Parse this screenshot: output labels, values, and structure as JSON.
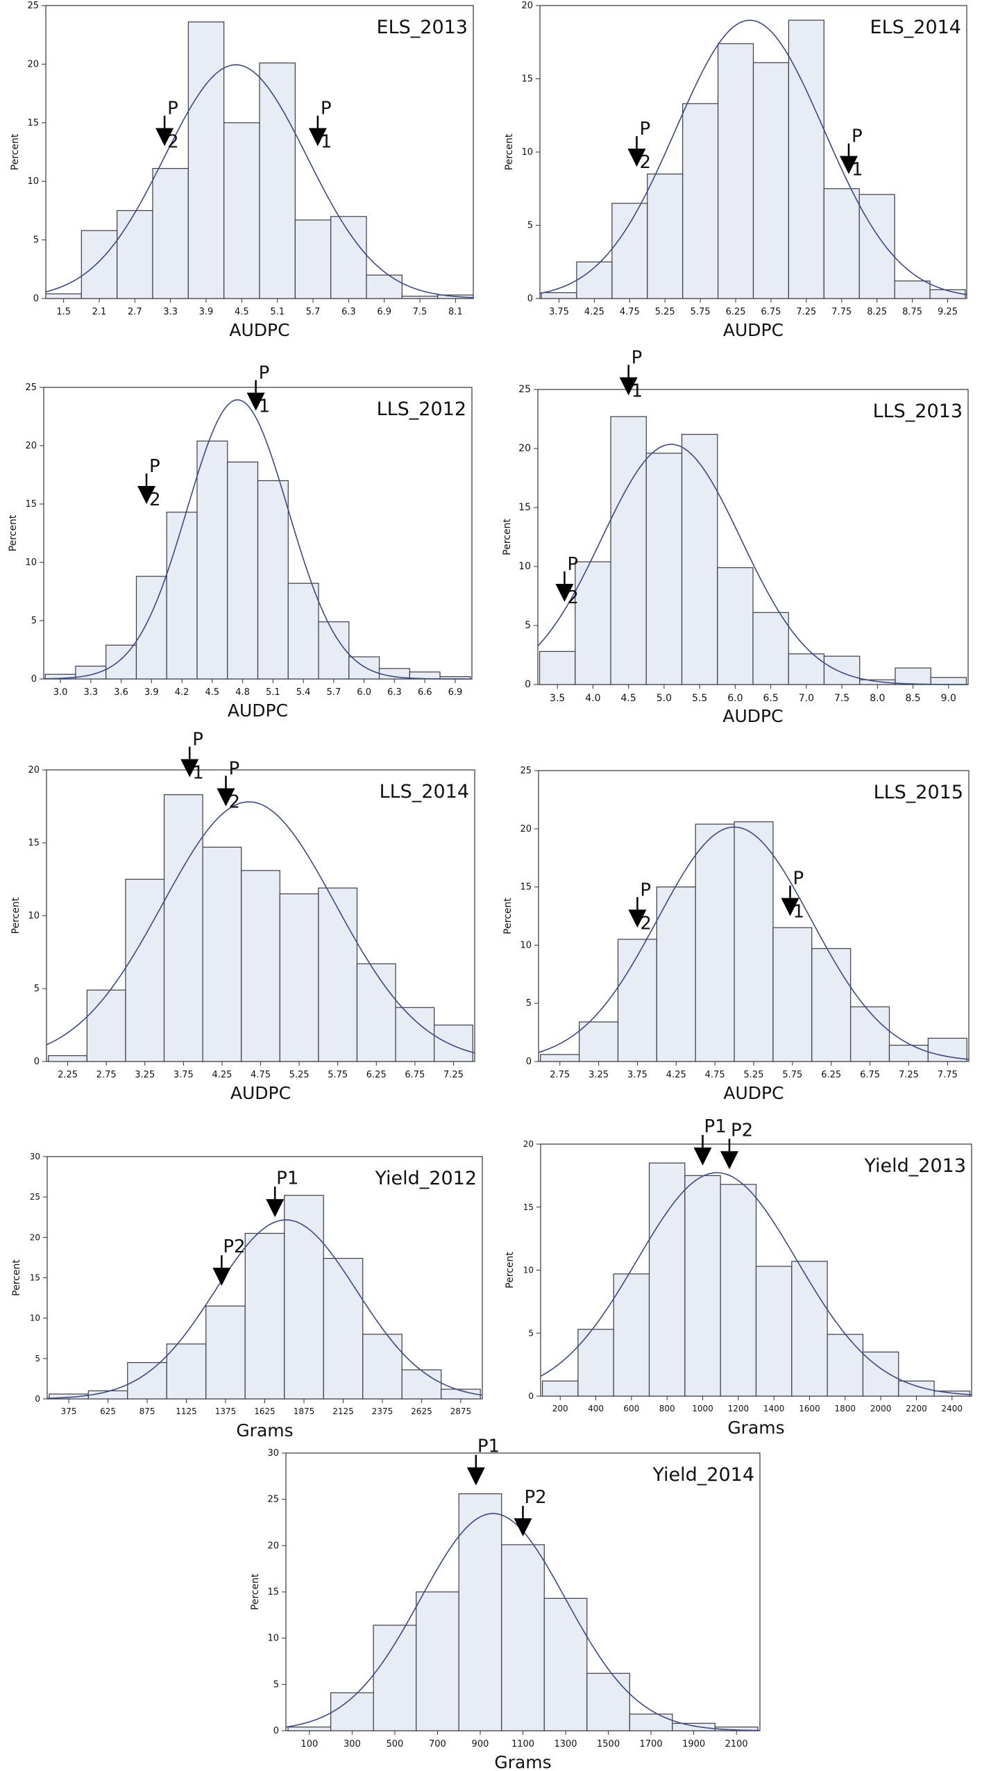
{
  "chart_data": [
    {
      "type": "bar",
      "title": "ELS_2013",
      "xlabel": "AUDPC",
      "ylabel": "Percent",
      "categories": [
        "1.5",
        "2.1",
        "2.7",
        "3.3",
        "3.9",
        "4.5",
        "5.1",
        "5.7",
        "6.3",
        "6.9",
        "7.5",
        "8.1"
      ],
      "values": [
        0.4,
        5.8,
        7.5,
        11.1,
        23.6,
        15.0,
        20.1,
        6.7,
        7.0,
        2.0,
        0.2,
        0.3
      ],
      "ylim": [
        0,
        25
      ],
      "yticks": [
        0,
        5,
        10,
        15,
        20,
        25
      ],
      "curve": {
        "mean": 4.4,
        "sd": 1.2
      },
      "markers": [
        {
          "top": "P",
          "bottom": "2",
          "x": 3.2,
          "y": 13
        },
        {
          "top": "P",
          "bottom": "1",
          "x": 5.78,
          "y": 13
        }
      ]
    },
    {
      "type": "bar",
      "title": "ELS_2014",
      "xlabel": "AUDPC",
      "ylabel": "Percent",
      "categories": [
        "3.75",
        "4.25",
        "4.75",
        "5.25",
        "5.75",
        "6.25",
        "6.75",
        "7.25",
        "7.75",
        "8.25",
        "8.75",
        "9.25"
      ],
      "values": [
        0.4,
        2.5,
        6.5,
        8.5,
        13.3,
        17.4,
        16.1,
        19.0,
        7.5,
        7.1,
        1.2,
        0.6
      ],
      "ylim": [
        0,
        20
      ],
      "yticks": [
        0,
        5,
        10,
        15,
        20
      ],
      "curve": {
        "mean": 6.45,
        "sd": 1.05
      },
      "markers": [
        {
          "top": "P",
          "bottom": "2",
          "x": 4.85,
          "y": 9
        },
        {
          "top": "P",
          "bottom": "1",
          "x": 7.85,
          "y": 8.5
        }
      ]
    },
    {
      "type": "bar",
      "title": "LLS_2012",
      "xlabel": "AUDPC",
      "ylabel": "Percent",
      "categories": [
        "3.0",
        "3.3",
        "3.6",
        "3.9",
        "4.2",
        "4.5",
        "4.8",
        "5.1",
        "5.4",
        "5.7",
        "6.0",
        "6.3",
        "6.6",
        "6.9"
      ],
      "values": [
        0.4,
        1.1,
        2.9,
        8.8,
        14.3,
        20.4,
        18.6,
        17.0,
        8.2,
        4.9,
        1.9,
        0.9,
        0.6,
        0.2
      ],
      "ylim": [
        0,
        25
      ],
      "yticks": [
        0,
        5,
        10,
        15,
        20,
        25
      ],
      "curve": {
        "mean": 4.75,
        "sd": 0.5
      },
      "markers": [
        {
          "top": "P",
          "bottom": "2",
          "x": 3.85,
          "y": 15
        },
        {
          "top": "P",
          "bottom": "1",
          "x": 4.93,
          "y": 23
        }
      ]
    },
    {
      "type": "bar",
      "title": "LLS_2013",
      "xlabel": "AUDPC",
      "ylabel": "Percent",
      "categories": [
        "3.5",
        "4.0",
        "4.5",
        "5.0",
        "5.5",
        "6.0",
        "6.5",
        "7.0",
        "7.5",
        "8.0",
        "8.5",
        "9.0"
      ],
      "values": [
        2.8,
        10.4,
        22.7,
        19.6,
        21.2,
        9.9,
        6.1,
        2.6,
        2.4,
        0.4,
        1.4,
        0.6
      ],
      "ylim": [
        0,
        25
      ],
      "yticks": [
        0,
        5,
        10,
        15,
        20,
        25
      ],
      "curve": {
        "mean": 5.1,
        "sd": 0.98
      },
      "markers": [
        {
          "top": "P",
          "bottom": "2",
          "x": 3.6,
          "y": 7
        },
        {
          "top": "P",
          "bottom": "1",
          "x": 4.5,
          "y": 24.5
        }
      ]
    },
    {
      "type": "bar",
      "title": "LLS_2014",
      "xlabel": "AUDPC",
      "ylabel": "Percent",
      "categories": [
        "2.25",
        "2.75",
        "3.25",
        "3.75",
        "4.25",
        "4.75",
        "5.25",
        "5.75",
        "6.25",
        "6.75",
        "7.25"
      ],
      "values": [
        0.4,
        4.9,
        12.5,
        18.3,
        14.7,
        13.1,
        11.5,
        11.9,
        6.7,
        3.7,
        2.5
      ],
      "ylim": [
        0,
        20
      ],
      "yticks": [
        0,
        5,
        10,
        15,
        20
      ],
      "curve": {
        "mean": 4.6,
        "sd": 1.12
      },
      "markers": [
        {
          "top": "P",
          "bottom": "1",
          "x": 3.83,
          "y": 19.5
        },
        {
          "top": "P",
          "bottom": "2",
          "x": 4.3,
          "y": 17.5
        }
      ]
    },
    {
      "type": "bar",
      "title": "LLS_2015",
      "xlabel": "AUDPC",
      "ylabel": "Percent",
      "categories": [
        "2.75",
        "3.25",
        "3.75",
        "4.25",
        "4.75",
        "5.25",
        "5.75",
        "6.25",
        "6.75",
        "7.25",
        "7.75"
      ],
      "values": [
        0.6,
        3.4,
        10.5,
        15.0,
        20.4,
        20.6,
        11.5,
        9.7,
        4.7,
        1.4,
        2.0
      ],
      "ylim": [
        0,
        25
      ],
      "yticks": [
        0,
        5,
        10,
        15,
        20,
        25
      ],
      "curve": {
        "mean": 5.0,
        "sd": 0.99
      },
      "markers": [
        {
          "top": "P",
          "bottom": "2",
          "x": 3.75,
          "y": 11.5
        },
        {
          "top": "P",
          "bottom": "1",
          "x": 5.72,
          "y": 12.5
        }
      ]
    },
    {
      "type": "bar",
      "title": "Yield_2012",
      "xlabel": "Grams",
      "ylabel": "Percent",
      "categories": [
        "375",
        "625",
        "875",
        "1125",
        "1375",
        "1625",
        "1875",
        "2125",
        "2375",
        "2625",
        "2875"
      ],
      "values": [
        0.6,
        1.0,
        4.5,
        6.8,
        11.5,
        20.5,
        25.2,
        17.4,
        8.0,
        3.6,
        1.2
      ],
      "ylim": [
        0,
        30
      ],
      "yticks": [
        0,
        5,
        10,
        15,
        20,
        25,
        30
      ],
      "curve": {
        "mean": 1760,
        "sd": 450
      },
      "markers": [
        {
          "label": "P2",
          "x": 1350,
          "y": 14
        },
        {
          "label": "P1",
          "x": 1690,
          "y": 22.5
        }
      ]
    },
    {
      "type": "bar",
      "title": "Yield_2013",
      "xlabel": "Grams",
      "ylabel": "Percent",
      "categories": [
        "200",
        "400",
        "600",
        "800",
        "1000",
        "1200",
        "1400",
        "1600",
        "1800",
        "2000",
        "2200",
        "2400"
      ],
      "values": [
        1.2,
        5.3,
        9.7,
        18.5,
        17.5,
        16.8,
        10.3,
        10.7,
        4.9,
        3.5,
        1.2,
        0.4
      ],
      "ylim": [
        0,
        20
      ],
      "yticks": [
        0,
        5,
        10,
        15,
        20
      ],
      "curve": {
        "mean": 1080,
        "sd": 450
      },
      "markers": [
        {
          "label": "P1",
          "x": 1000,
          "y": 18.3
        },
        {
          "label": "P2",
          "x": 1150,
          "y": 18
        }
      ]
    },
    {
      "type": "bar",
      "title": "Yield_2014",
      "xlabel": "Grams",
      "ylabel": "Percent",
      "categories": [
        "100",
        "300",
        "500",
        "700",
        "900",
        "1100",
        "1300",
        "1500",
        "1700",
        "1900",
        "2100"
      ],
      "values": [
        0.4,
        4.1,
        11.4,
        15.0,
        25.6,
        20.1,
        14.3,
        6.2,
        1.8,
        0.8,
        0.4
      ],
      "ylim": [
        0,
        30
      ],
      "yticks": [
        0,
        5,
        10,
        15,
        20,
        25,
        30
      ],
      "curve": {
        "mean": 960,
        "sd": 340
      },
      "markers": [
        {
          "label": "P1",
          "x": 880,
          "y": 26.5
        },
        {
          "label": "P2",
          "x": 1100,
          "y": 21
        }
      ]
    }
  ],
  "colors": {
    "bar_fill": "#e8ecf4",
    "bar_stroke": "#3b3b45",
    "curve": "#3a4a86",
    "axis": "#333333",
    "text": "#111111",
    "marker": "#000000"
  }
}
